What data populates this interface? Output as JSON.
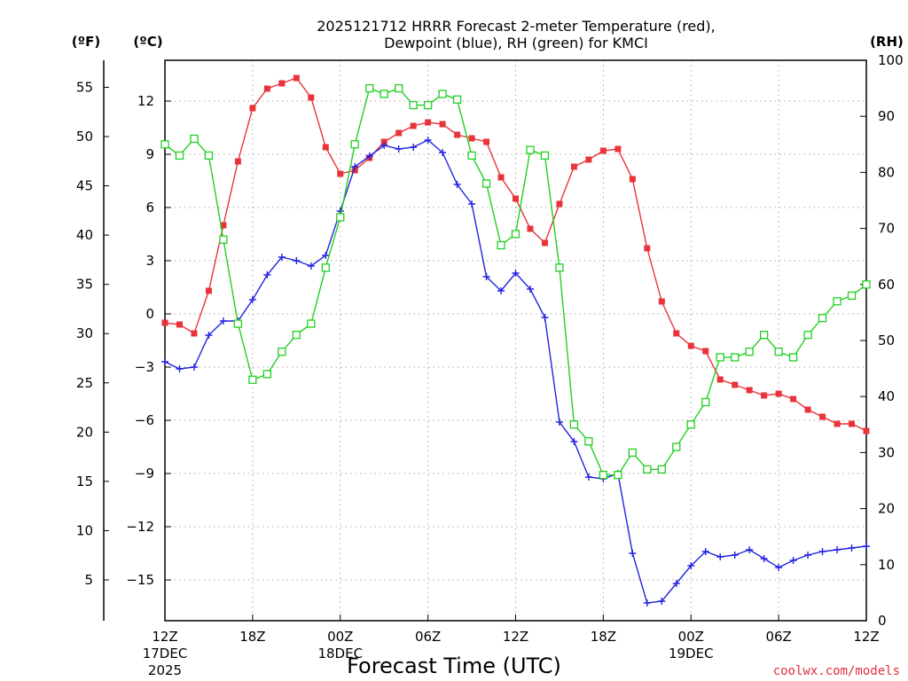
{
  "chart_data": {
    "type": "line",
    "title_line1": "2025121712 HRRR Forecast 2-meter Temperature (red),",
    "title_line2": "Dewpoint (blue), RH (green) for KMCI",
    "xlabel": "Forecast Time (UTC)",
    "credit": "coolwx.com/models",
    "units": {
      "fahrenheit": "(ºF)",
      "celsius": "(ºC)",
      "rh": "(RH)"
    },
    "x_range": [
      0,
      48
    ],
    "x_ticks": [
      {
        "h": 0,
        "label": "12Z",
        "sub1": "17DEC",
        "sub2": "2025"
      },
      {
        "h": 6,
        "label": "18Z",
        "sub1": "",
        "sub2": ""
      },
      {
        "h": 12,
        "label": "00Z",
        "sub1": "18DEC",
        "sub2": ""
      },
      {
        "h": 18,
        "label": "06Z",
        "sub1": "",
        "sub2": ""
      },
      {
        "h": 24,
        "label": "12Z",
        "sub1": "",
        "sub2": ""
      },
      {
        "h": 30,
        "label": "18Z",
        "sub1": "",
        "sub2": ""
      },
      {
        "h": 36,
        "label": "00Z",
        "sub1": "19DEC",
        "sub2": ""
      },
      {
        "h": 42,
        "label": "06Z",
        "sub1": "",
        "sub2": ""
      },
      {
        "h": 48,
        "label": "12Z",
        "sub1": "",
        "sub2": ""
      }
    ],
    "celsius_range": [
      -17.3,
      14.3
    ],
    "celsius_ticks": [
      "12",
      "9",
      "6",
      "3",
      "0",
      "−3",
      "−6",
      "−9",
      "−12",
      "−15"
    ],
    "fahrenheit_ticks": [
      "55",
      "50",
      "45",
      "40",
      "35",
      "30",
      "25",
      "20",
      "15",
      "10",
      "5"
    ],
    "rh_range": [
      0,
      100
    ],
    "rh_ticks": [
      "100",
      "90",
      "80",
      "70",
      "60",
      "50",
      "40",
      "30",
      "20",
      "10",
      "0"
    ],
    "grid": true,
    "series": [
      {
        "key": "temperature",
        "color": "#e8333a",
        "marker": "filled-square",
        "axis": "celsius",
        "values": [
          -0.5,
          -0.6,
          -1.1,
          1.3,
          5.0,
          8.6,
          11.6,
          12.7,
          13.0,
          13.3,
          12.2,
          9.4,
          7.9,
          8.1,
          8.8,
          9.7,
          10.2,
          10.6,
          10.8,
          10.7,
          10.1,
          9.9,
          9.7,
          7.7,
          6.5,
          4.8,
          4.0,
          6.2,
          8.3,
          8.7,
          9.2,
          9.3,
          7.6,
          3.7,
          0.7,
          -1.1,
          -1.8,
          -2.1,
          -3.7,
          -4.0,
          -4.3,
          -4.6,
          -4.5,
          -4.8,
          -5.4,
          -5.8,
          -6.2,
          -6.2,
          -6.6
        ]
      },
      {
        "key": "dewpoint",
        "color": "#2323e0",
        "marker": "plus",
        "axis": "celsius",
        "values": [
          -2.7,
          -3.1,
          -3.0,
          -1.2,
          -0.4,
          -0.4,
          0.8,
          2.2,
          3.2,
          3.0,
          2.7,
          3.3,
          5.8,
          8.3,
          8.9,
          9.5,
          9.3,
          9.4,
          9.8,
          9.1,
          7.3,
          6.2,
          2.1,
          1.3,
          2.3,
          1.4,
          -0.2,
          -6.1,
          -7.2,
          -9.2,
          -9.3,
          -9.0,
          -13.5,
          -16.3,
          -16.2,
          -15.2,
          -14.2,
          -13.4,
          -13.7,
          -13.6,
          -13.3,
          -13.8,
          -14.3,
          -13.9,
          -13.6,
          -13.4,
          -13.3,
          -13.2,
          -13.1
        ]
      },
      {
        "key": "rh",
        "color": "#22d022",
        "marker": "open-square",
        "axis": "rh",
        "values": [
          85,
          83,
          86,
          83,
          68,
          53,
          43,
          44,
          48,
          51,
          53,
          63,
          72,
          85,
          95,
          94,
          95,
          92,
          92,
          94,
          93,
          83,
          78,
          67,
          69,
          84,
          83,
          63,
          35,
          32,
          26,
          26,
          30,
          27,
          27,
          31,
          35,
          39,
          47,
          47,
          48,
          51,
          48,
          47,
          51,
          54,
          57,
          58,
          60
        ]
      }
    ]
  }
}
